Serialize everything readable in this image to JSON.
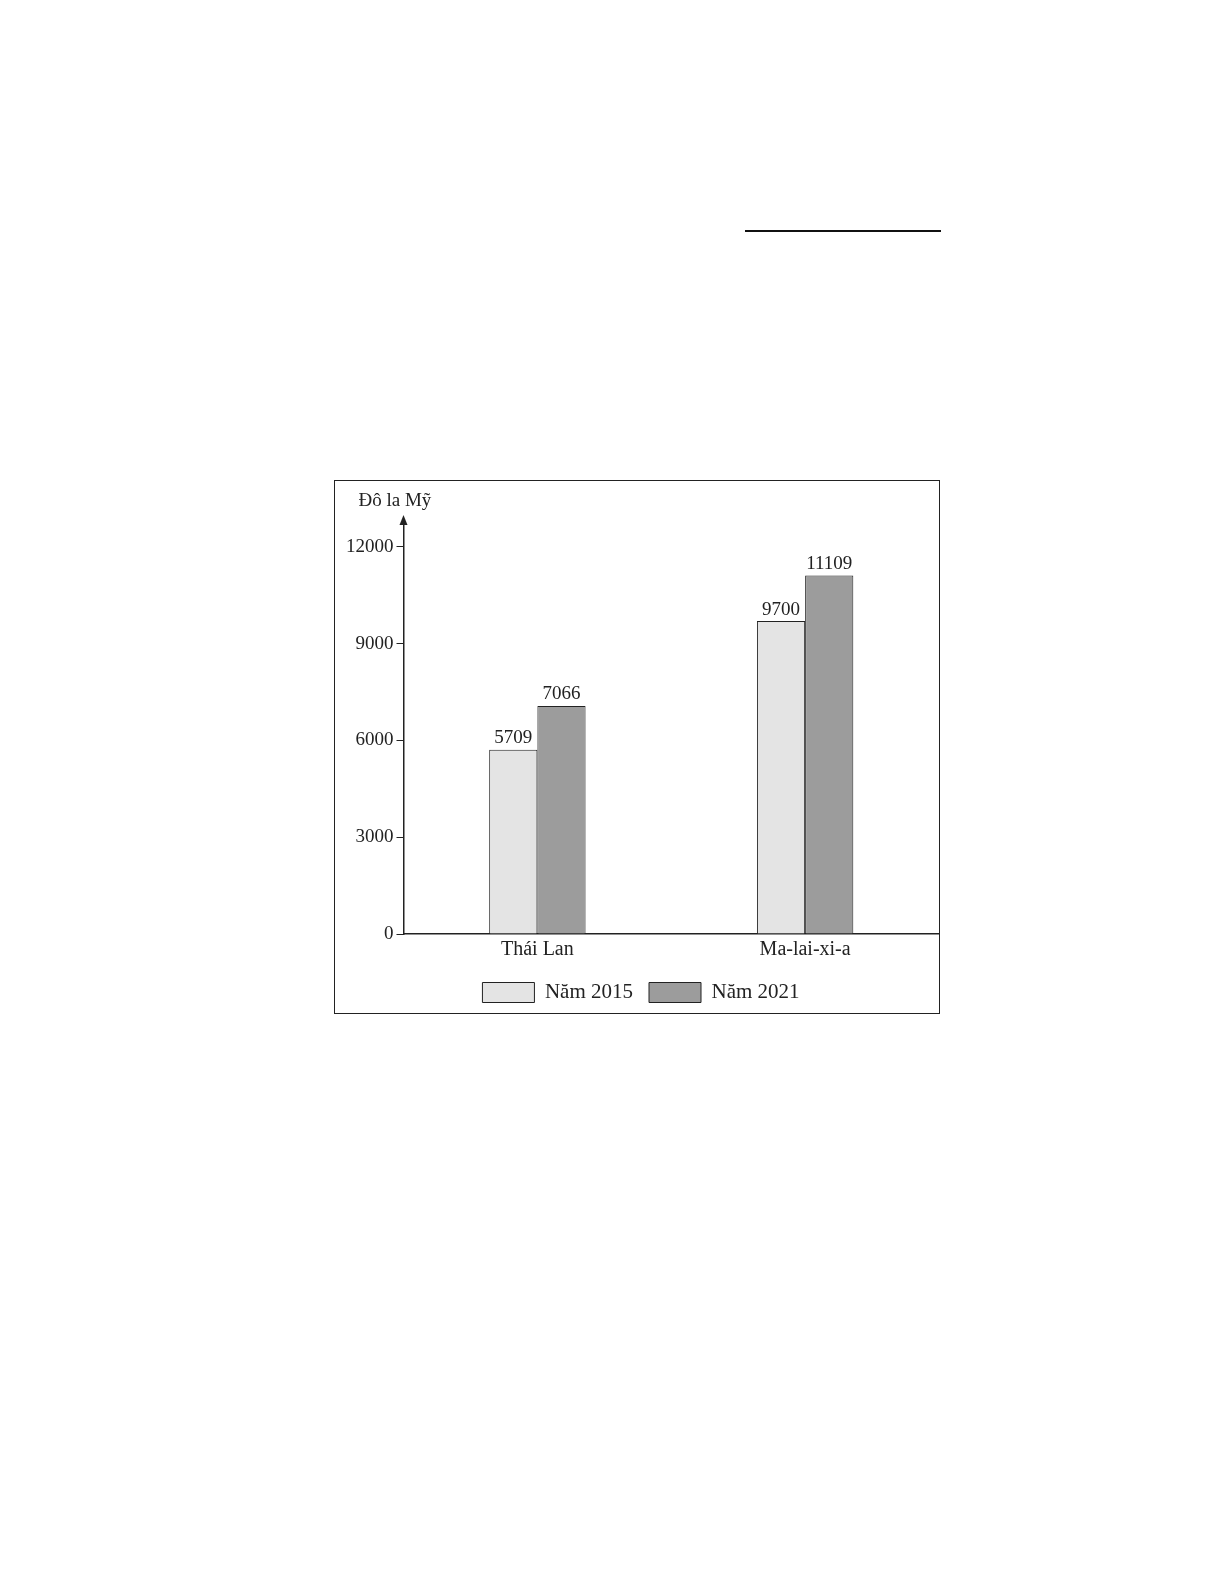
{
  "chart_data": {
    "type": "bar",
    "ylabel": "Đô la Mỹ",
    "categories": [
      "Thái Lan",
      "Ma-lai-xi-a"
    ],
    "series": [
      {
        "name": "Năm 2015",
        "color": "#e4e4e4",
        "values": [
          5709,
          9700
        ]
      },
      {
        "name": "Năm 2021",
        "color": "#9c9c9c",
        "values": [
          7066,
          11109
        ]
      }
    ],
    "ylim": [
      0,
      12800
    ],
    "yticks": [
      0,
      3000,
      6000,
      9000,
      12000
    ],
    "grid": false,
    "legend": "bottom",
    "data_labels": true
  }
}
